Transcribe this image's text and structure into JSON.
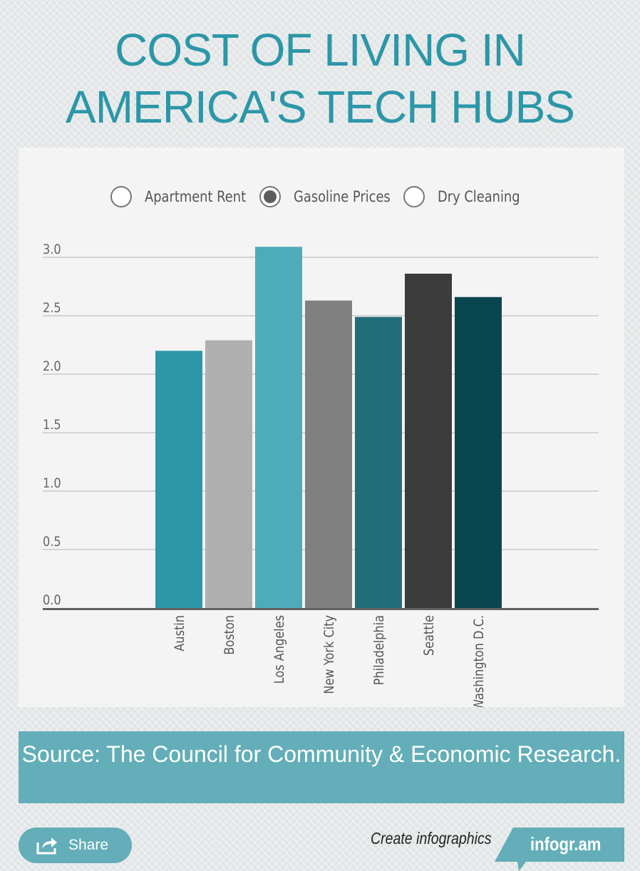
{
  "title": {
    "line1": "COST OF LIVING IN",
    "line2": "AMERICA'S TECH HUBS"
  },
  "filters": [
    {
      "label": "Apartment Rent",
      "selected": false
    },
    {
      "label": "Gasoline Prices",
      "selected": true
    },
    {
      "label": "Dry Cleaning",
      "selected": false
    }
  ],
  "chart_data": {
    "type": "bar",
    "categories": [
      "Austin",
      "Boston",
      "Los Angeles",
      "New York City",
      "Philadelphia",
      "Seattle",
      "Washington D.C."
    ],
    "values": [
      2.2,
      2.29,
      3.09,
      2.63,
      2.49,
      2.86,
      2.66
    ],
    "colors": [
      "#2b97a8",
      "#b0b0b0",
      "#4eabba",
      "#808080",
      "#226e78",
      "#3c3c3c",
      "#0a4650"
    ],
    "ylim": [
      0,
      3.0
    ],
    "yticks": [
      "0.0",
      "0.5",
      "1.0",
      "1.5",
      "2.0",
      "2.5",
      "3.0"
    ],
    "grid": true,
    "title": "",
    "xlabel": "",
    "ylabel": ""
  },
  "source": {
    "text": "Source: The Council for Community & Economic Research."
  },
  "footer": {
    "share_label": "Share",
    "create_text": "Create infographics",
    "brand": "infogr.am"
  },
  "colors": {
    "accent": "#2b97a8",
    "source_bg": "#63aeb8"
  }
}
